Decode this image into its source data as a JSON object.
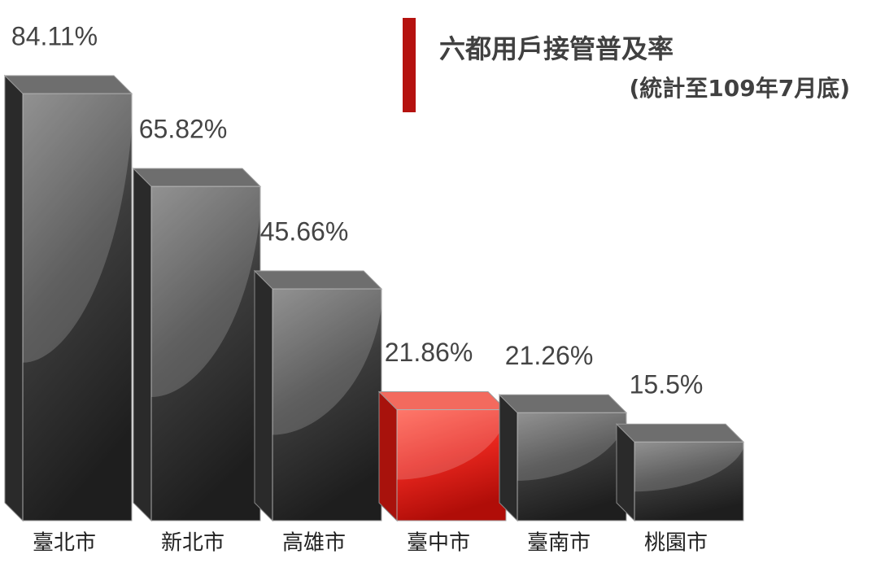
{
  "chart_data": {
    "type": "bar3d",
    "title": "六都用戶接管普及率",
    "subtitle": "(統計至109年7月底)",
    "categories": [
      "臺北市",
      "新北市",
      "高雄市",
      "臺中市",
      "臺南市",
      "桃園市"
    ],
    "values": [
      84.11,
      65.82,
      45.66,
      21.86,
      21.26,
      15.5
    ],
    "value_labels": [
      "84.11%",
      "65.82%",
      "45.66%",
      "21.86%",
      "21.26%",
      "15.5%"
    ],
    "colors": [
      "#3a3a3a",
      "#3a3a3a",
      "#3a3a3a",
      "#e8261e",
      "#3a3a3a",
      "#3a3a3a"
    ]
  }
}
